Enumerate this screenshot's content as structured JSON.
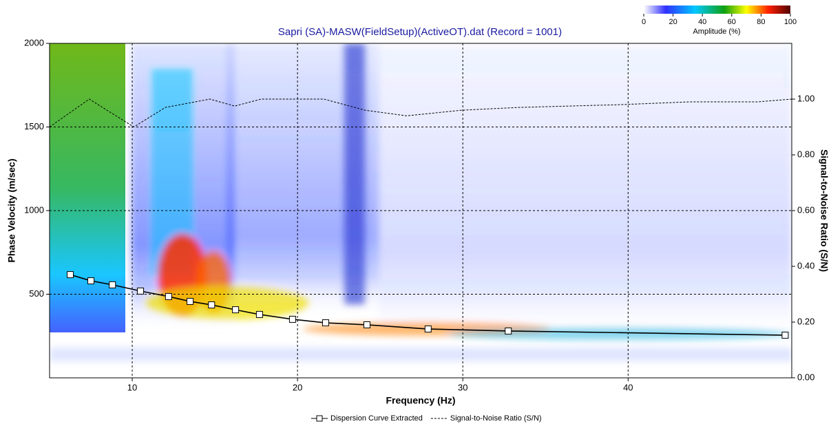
{
  "chart_data": {
    "type": "line",
    "title": "Sapri (SA)-MASW(FieldSetup)(ActiveOT).dat (Record = 1001)",
    "x_label": "Frequency (Hz)",
    "y_label": "Phase Velocity (m/sec)",
    "y2_label": "Signal-to-Noise Ratio (S/N)",
    "xlim": [
      5,
      49.9
    ],
    "xticks": [
      10,
      20,
      30,
      40
    ],
    "ylim": [
      0,
      2000
    ],
    "yticks": [
      500,
      1000,
      1500,
      2000
    ],
    "y2lim": [
      0,
      1.2
    ],
    "y2ticks": [
      {
        "value": 0,
        "label": "0.00"
      },
      {
        "value": 0.2,
        "label": "0.20"
      },
      {
        "value": 0.4,
        "label": "0.40"
      },
      {
        "value": 0.6,
        "label": "0.60"
      },
      {
        "value": 0.8,
        "label": "0.80"
      },
      {
        "value": 1,
        "label": "1.00"
      }
    ],
    "grid": true,
    "series": [
      {
        "name": "Dispersion Curve Extracted",
        "color": "#000000",
        "marker": "square",
        "x": [
          6.25,
          7.5,
          8.8,
          10.5,
          12.2,
          13.5,
          14.8,
          16.25,
          17.7,
          19.7,
          21.7,
          24.2,
          27.9,
          32.75,
          49.5
        ],
        "values": [
          617,
          580,
          556,
          519,
          486,
          457,
          436,
          407,
          379,
          350,
          329,
          317,
          292,
          280,
          255
        ]
      },
      {
        "name": "Signal-to-Noise Ratio (S/N)",
        "color": "#000000",
        "dashed": true,
        "axis": "y2",
        "x": [
          5,
          7.4,
          10.1,
          12,
          14.7,
          16.2,
          17.8,
          21.6,
          24.1,
          26.6,
          29.9,
          33.3,
          39.5,
          43.7,
          47.8,
          49.9
        ],
        "values": [
          0.9,
          1.0,
          0.9,
          0.97,
          1.0,
          0.975,
          1.0,
          1.0,
          0.96,
          0.94,
          0.96,
          0.97,
          0.98,
          0.99,
          0.99,
          1.0
        ]
      }
    ],
    "colorbar": {
      "label": "Amplitude (%)",
      "lim": [
        0,
        100
      ],
      "ticks": [
        0,
        20,
        40,
        60,
        80,
        100
      ]
    }
  }
}
